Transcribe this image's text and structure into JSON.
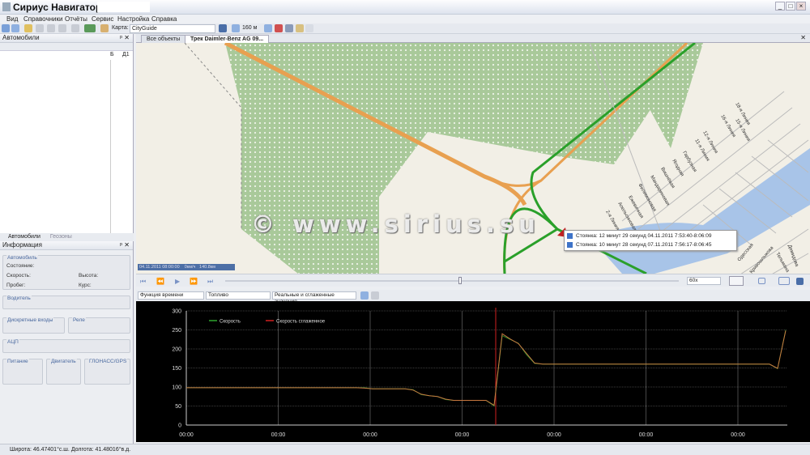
{
  "window": {
    "title": "Сириус Навигатор -",
    "controls": [
      "_",
      "□",
      "×"
    ]
  },
  "menu": [
    "Вид",
    "Справочники",
    "Отчёты",
    "Сервис",
    "Настройка",
    "Справка"
  ],
  "toolbar": {
    "map_label": "Карта:",
    "map_value": "CityGuide",
    "scale_value": "160 м"
  },
  "vehicles_panel": {
    "title": "Автомобили",
    "columns": [
      "Б",
      "Д1"
    ],
    "tabs": [
      "Автомобили",
      "Геозоны"
    ]
  },
  "info_panel": {
    "title": "Информация",
    "groups": {
      "vehicle": "Автомобиль",
      "driver": "Водитель",
      "discrete": "Дискретные входы",
      "relay": "Реле",
      "adc": "АЦП",
      "power": "Питание",
      "engine": "Двигатель",
      "gnss": "ГЛОНАСС/GPS"
    },
    "fields": {
      "state": "Состояние:",
      "speed": "Скорость:",
      "altitude": "Высота:",
      "mileage": "Пробег:",
      "course": "Курс:"
    }
  },
  "map_tabs": [
    "Все объекты",
    "Трек Daimler-Benz AG  09..."
  ],
  "map": {
    "watermark": "© www.sirius.su",
    "info_time": "04.11.2011 08:00:00",
    "info_speed": "0км/ч",
    "info_dist": "140.8км",
    "popup": [
      "Стоянка: 12 минут 29 секунд 04.11.2011 7:53:40-8:06:09",
      "Стоянка: 10 минут 28 секунд 07.11.2011 7:56:17-8:06:45"
    ],
    "streets": [
      "18-я Линия",
      "16-я Линия",
      "15-я Линия",
      "12-я Линия",
      "11-я Линия",
      "Гарбузная",
      "Ягодная",
      "Вишнёвая",
      "Мандариновая",
      "Филимоновая",
      "Ежевичная",
      "Апельсиновая",
      "2-я Линия",
      "Одесская",
      "Тельмана",
      "Кривошлыкова",
      "Демидова"
    ]
  },
  "playback": {
    "speed_value": "60x"
  },
  "chart_toolbar": {
    "mode": "Функция времени",
    "param": "Топливо",
    "values": "Реальные и сглаженные значения"
  },
  "chart_data": {
    "type": "line",
    "title": "",
    "xlabel": "",
    "ylabel": "",
    "ylim": [
      0,
      300
    ],
    "yticks": [
      0,
      50,
      100,
      150,
      200,
      250,
      300
    ],
    "xticks": [
      "00:00",
      "00:00",
      "00:00",
      "00:00",
      "00:00",
      "00:00",
      "00:00"
    ],
    "grid": true,
    "legend": "top-left",
    "series": [
      {
        "name": "Скорость",
        "color": "#2fa52f",
        "values": [
          98,
          98,
          98,
          98,
          98,
          98,
          98,
          98,
          98,
          98,
          98,
          98,
          98,
          98,
          98,
          98,
          98,
          98,
          98,
          98,
          98,
          98,
          98,
          95,
          95,
          95,
          95,
          95,
          93,
          80,
          77,
          75,
          67,
          65,
          65,
          65,
          65,
          65,
          50,
          235,
          225,
          215,
          185,
          162,
          160,
          160,
          160,
          160,
          160,
          160,
          160,
          160,
          160,
          160,
          160,
          160,
          160,
          160,
          160,
          160,
          160,
          160,
          160,
          160,
          160,
          160,
          160,
          160,
          160,
          160,
          160,
          160,
          160,
          148,
          250
        ]
      },
      {
        "name": "Скорость сглаженное",
        "color": "#d02020",
        "values": [
          98,
          98,
          98,
          98,
          98,
          98,
          98,
          98,
          98,
          98,
          98,
          98,
          98,
          98,
          98,
          98,
          98,
          98,
          98,
          98,
          98,
          98,
          97,
          95,
          95,
          95,
          95,
          95,
          92,
          81,
          77,
          75,
          68,
          65,
          65,
          65,
          65,
          65,
          52,
          240,
          226,
          214,
          188,
          163,
          160,
          160,
          160,
          160,
          160,
          160,
          160,
          160,
          160,
          160,
          160,
          160,
          160,
          160,
          160,
          160,
          160,
          160,
          160,
          160,
          160,
          160,
          160,
          160,
          160,
          160,
          160,
          160,
          160,
          149,
          248
        ]
      }
    ]
  },
  "status": {
    "lat": "Широта: 46.47401°с.ш.",
    "lon": "Долгота: 41.48016°в.д."
  }
}
